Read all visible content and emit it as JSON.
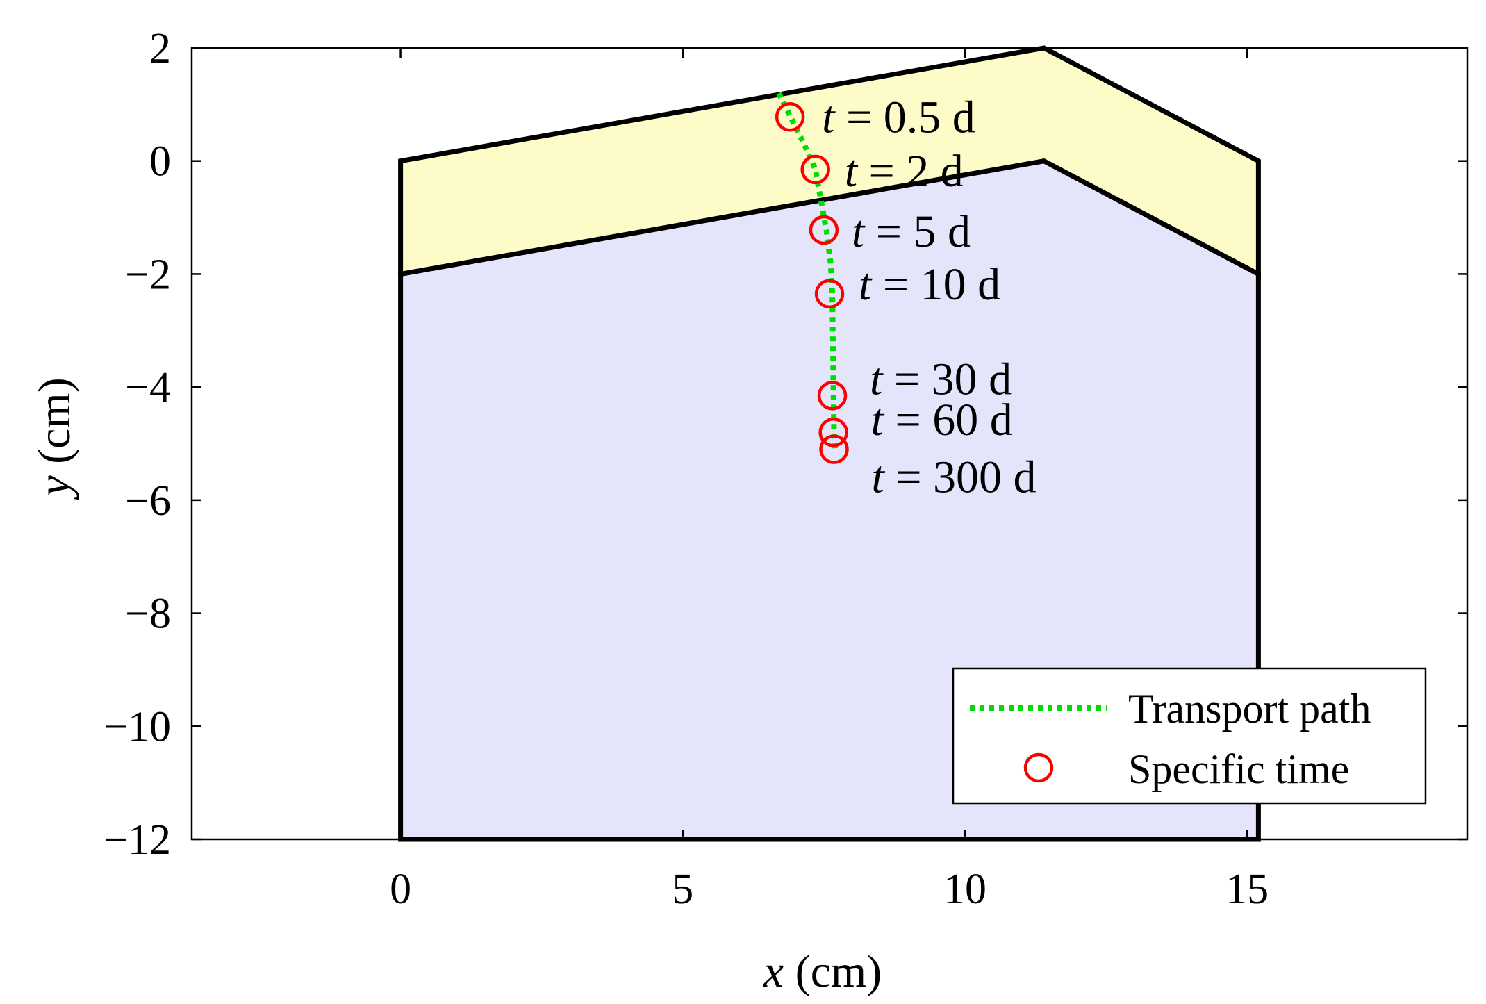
{
  "chart_data": {
    "type": "line",
    "xlabel": {
      "var": "x",
      "unit": "(cm)"
    },
    "ylabel": {
      "var": "y",
      "unit": "(cm)"
    },
    "xlim": [
      -3.7,
      18.9
    ],
    "ylim": [
      -12,
      2
    ],
    "xticks": [
      0,
      5,
      10,
      15
    ],
    "yticks": [
      2,
      0,
      -2,
      -4,
      -6,
      -8,
      -10,
      -12
    ],
    "xtick_labels": [
      "0",
      "5",
      "10",
      "15"
    ],
    "ytick_labels": [
      "2",
      "0",
      "−2",
      "−4",
      "−6",
      "−8",
      "−10",
      "−12"
    ],
    "grid": false,
    "regions": [
      {
        "id": "lower-layer",
        "color": "#e4e4fa",
        "points": [
          [
            0,
            -12
          ],
          [
            0,
            -2
          ],
          [
            11.4,
            0
          ],
          [
            15.2,
            -2
          ],
          [
            15.2,
            -12
          ]
        ]
      },
      {
        "id": "upper-layer",
        "color": "#fdfcc8",
        "points": [
          [
            0,
            0
          ],
          [
            11.4,
            2
          ],
          [
            15.2,
            0
          ],
          [
            15.2,
            -2
          ],
          [
            11.4,
            0
          ],
          [
            0,
            -2
          ]
        ]
      }
    ],
    "series": [
      {
        "name": "Transport path",
        "style": "dotted",
        "color": "#00dd00",
        "x": [
          6.7,
          6.9,
          7.15,
          7.35,
          7.45,
          7.55,
          7.62,
          7.65,
          7.66,
          7.67,
          7.68,
          7.7
        ],
        "y": [
          1.2,
          0.8,
          0.3,
          -0.15,
          -0.7,
          -1.25,
          -1.8,
          -2.35,
          -3.2,
          -4.1,
          -4.8,
          -5.1
        ]
      },
      {
        "name": "Specific time",
        "style": "markers",
        "color": "#ff0000",
        "points": [
          {
            "x": 6.9,
            "y": 0.78,
            "label": {
              "var": "t",
              "text": " = 0.5 d"
            }
          },
          {
            "x": 7.35,
            "y": -0.15,
            "label": {
              "var": "t",
              "text": " = 2 d"
            }
          },
          {
            "x": 7.5,
            "y": -1.22,
            "label": {
              "var": "t",
              "text": " = 5 d"
            }
          },
          {
            "x": 7.6,
            "y": -2.35,
            "label": {
              "var": "t",
              "text": " = 10 d"
            }
          },
          {
            "x": 7.65,
            "y": -4.15,
            "label": {
              "var": "t",
              "text": " = 30 d"
            }
          },
          {
            "x": 7.67,
            "y": -4.8,
            "label": {
              "var": "t",
              "text": " = 60 d"
            }
          },
          {
            "x": 7.68,
            "y": -5.1,
            "label": {
              "var": "t",
              "text": " = 300 d"
            }
          }
        ]
      }
    ],
    "legend": {
      "position": "bottom-right",
      "entries": [
        "Transport path",
        "Specific time"
      ]
    }
  }
}
